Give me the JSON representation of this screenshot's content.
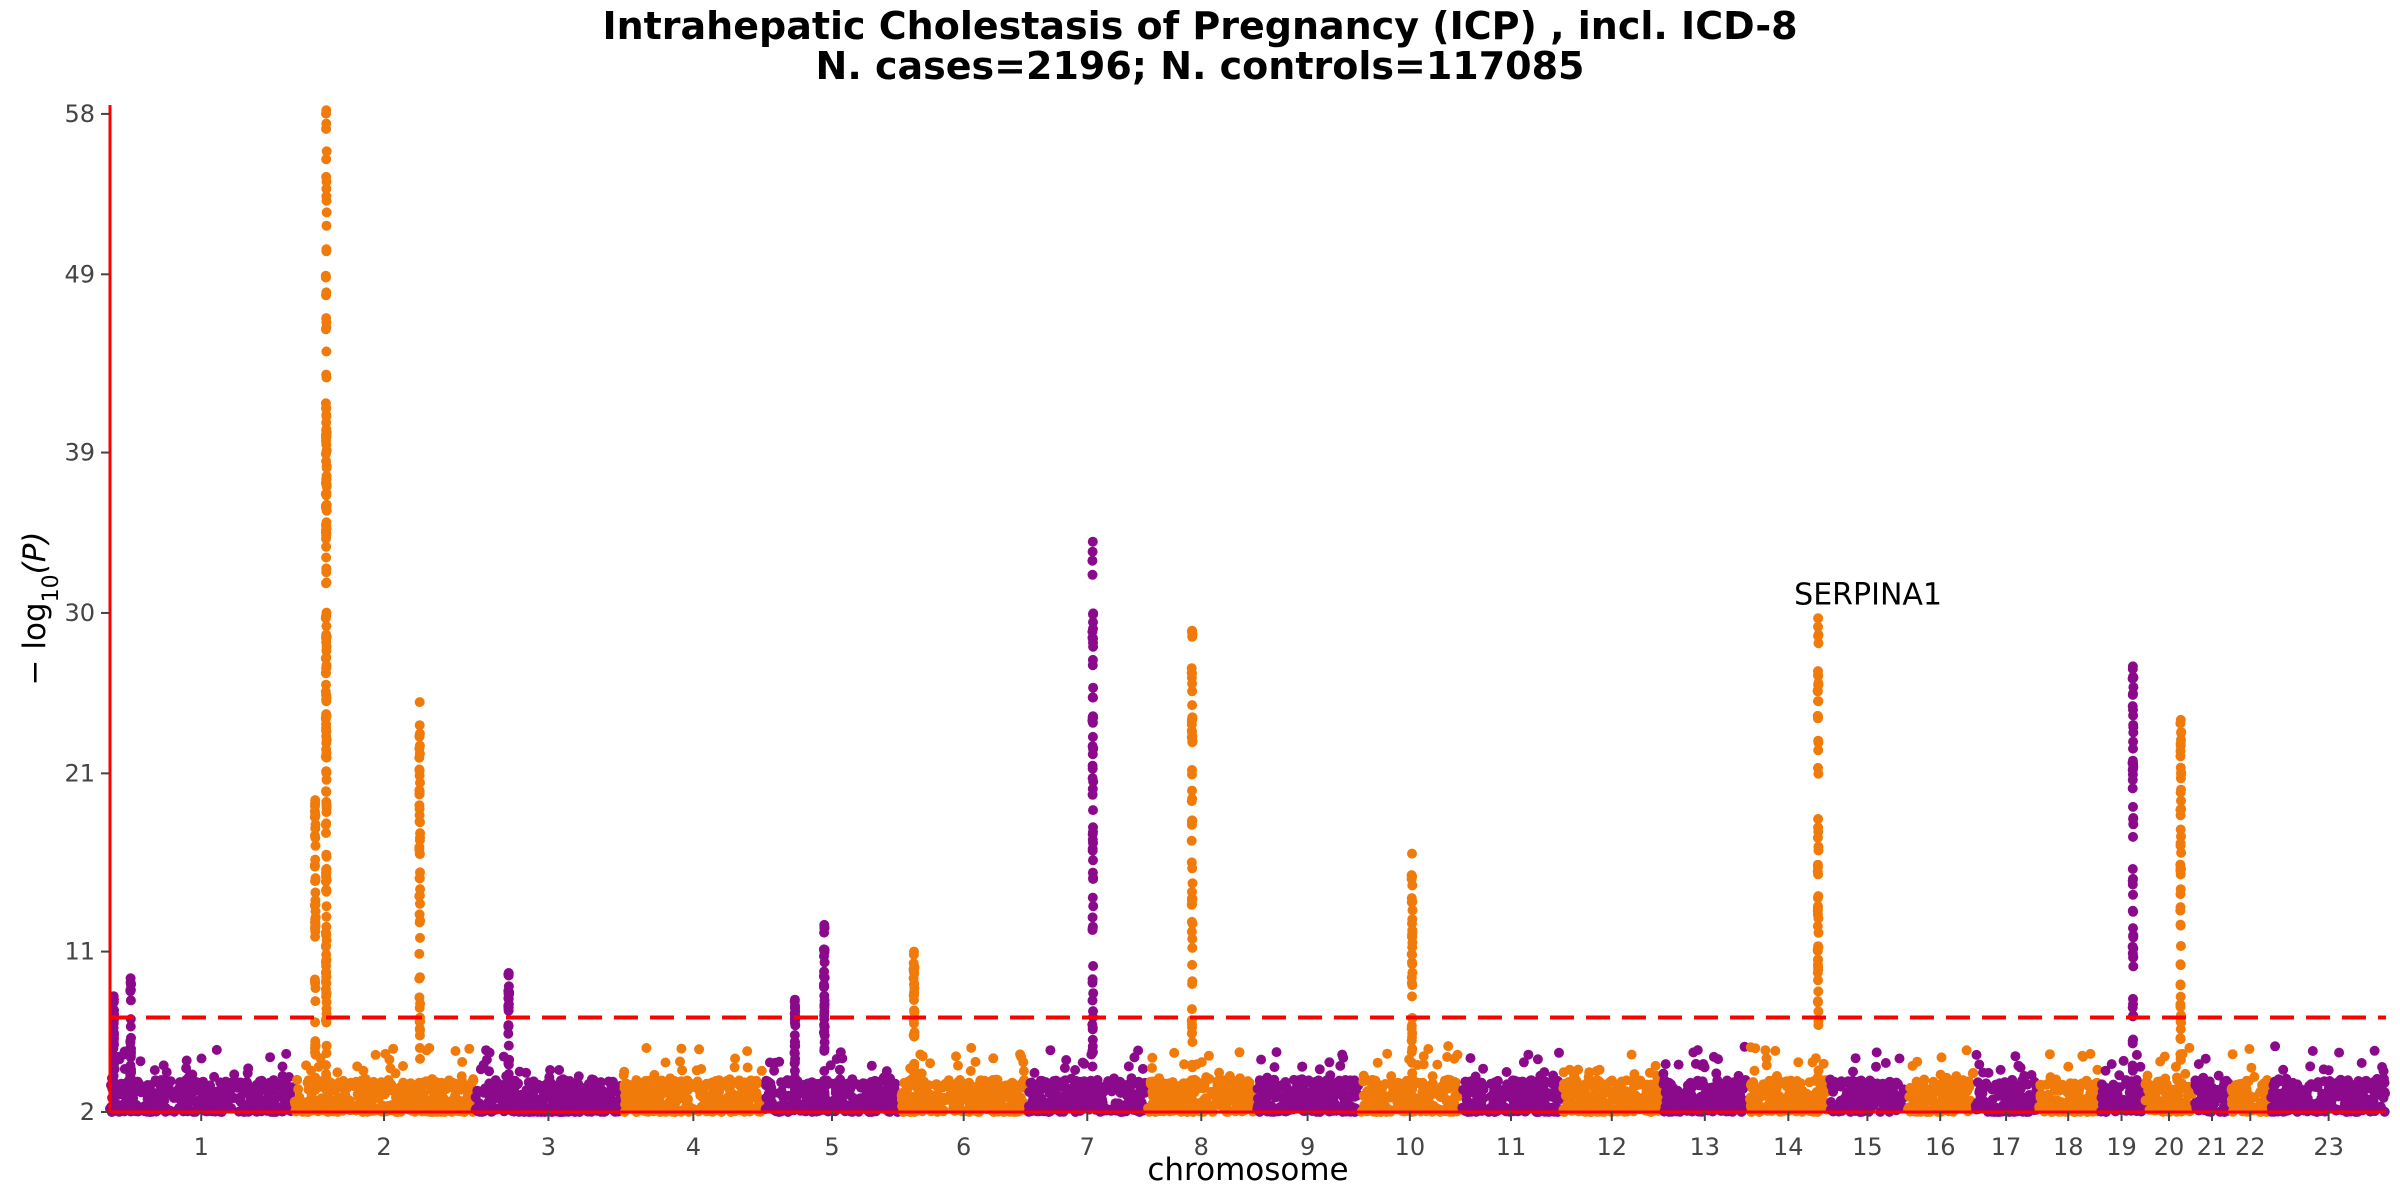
{
  "chart_data": {
    "type": "scatter",
    "subtype": "manhattan",
    "title": "Intrahepatic Cholestasis of Pregnancy (ICP) , incl. ICD-8",
    "subtitle": "N. cases=2196; N. controls=117085",
    "xlabel": "chromosome",
    "ylabel_base": "− log",
    "ylabel_sub": "10",
    "ylabel_arg": "(P)",
    "ylim": [
      2,
      58.5
    ],
    "yticks": [
      2,
      11,
      21,
      30,
      39,
      49,
      58
    ],
    "threshold": 7.3,
    "colors": {
      "odd": "#8b0a8b",
      "even": "#f07a0a",
      "axis": "#ff0000",
      "threshold": "#ff0000"
    },
    "chromosomes": [
      {
        "label": "1",
        "start": 0,
        "end": 248
      },
      {
        "label": "2",
        "start": 251,
        "end": 494
      },
      {
        "label": "3",
        "start": 497,
        "end": 695
      },
      {
        "label": "4",
        "start": 698,
        "end": 888
      },
      {
        "label": "5",
        "start": 891,
        "end": 1072
      },
      {
        "label": "6",
        "start": 1075,
        "end": 1246
      },
      {
        "label": "7",
        "start": 1249,
        "end": 1408
      },
      {
        "label": "8",
        "start": 1411,
        "end": 1556
      },
      {
        "label": "9",
        "start": 1559,
        "end": 1697
      },
      {
        "label": "10",
        "start": 1700,
        "end": 1834
      },
      {
        "label": "11",
        "start": 1837,
        "end": 1972
      },
      {
        "label": "12",
        "start": 1975,
        "end": 2108
      },
      {
        "label": "13",
        "start": 2111,
        "end": 2225
      },
      {
        "label": "14",
        "start": 2228,
        "end": 2335
      },
      {
        "label": "15",
        "start": 2338,
        "end": 2440
      },
      {
        "label": "16",
        "start": 2443,
        "end": 2533
      },
      {
        "label": "17",
        "start": 2536,
        "end": 2619
      },
      {
        "label": "18",
        "start": 2622,
        "end": 2702
      },
      {
        "label": "19",
        "start": 2705,
        "end": 2764
      },
      {
        "label": "20",
        "start": 2767,
        "end": 2831
      },
      {
        "label": "21",
        "start": 2834,
        "end": 2881
      },
      {
        "label": "22",
        "start": 2884,
        "end": 2935
      },
      {
        "label": "23",
        "start": 2938,
        "end": 3094
      }
    ],
    "peaks": [
      {
        "chrom": "1",
        "pos": 5,
        "maxP": 8.5
      },
      {
        "chrom": "1",
        "pos": 28,
        "maxP": 9.5
      },
      {
        "chrom": "2",
        "pos": 43,
        "maxP": 58.2
      },
      {
        "chrom": "2",
        "pos": 43,
        "maxP": 41.5
      },
      {
        "chrom": "2",
        "pos": 28,
        "maxP": 19.5
      },
      {
        "chrom": "2",
        "pos": 170,
        "maxP": 25
      },
      {
        "chrom": "3",
        "pos": 45,
        "maxP": 9.8
      },
      {
        "chrom": "5",
        "pos": 40,
        "maxP": 8.3
      },
      {
        "chrom": "5",
        "pos": 80,
        "maxP": 12.5
      },
      {
        "chrom": "6",
        "pos": 18,
        "maxP": 11
      },
      {
        "chrom": "7",
        "pos": 87,
        "maxP": 34
      },
      {
        "chrom": "8",
        "pos": 60,
        "maxP": 29
      },
      {
        "chrom": "10",
        "pos": 70,
        "maxP": 16.5
      },
      {
        "chrom": "14",
        "pos": 94,
        "maxP": 29.7
      },
      {
        "chrom": "19",
        "pos": 45,
        "maxP": 27
      },
      {
        "chrom": "20",
        "pos": 48,
        "maxP": 24
      }
    ],
    "annotations": [
      {
        "text": "SERPINA1",
        "chrom": "14",
        "pos": 94,
        "p": 29.7
      }
    ]
  }
}
